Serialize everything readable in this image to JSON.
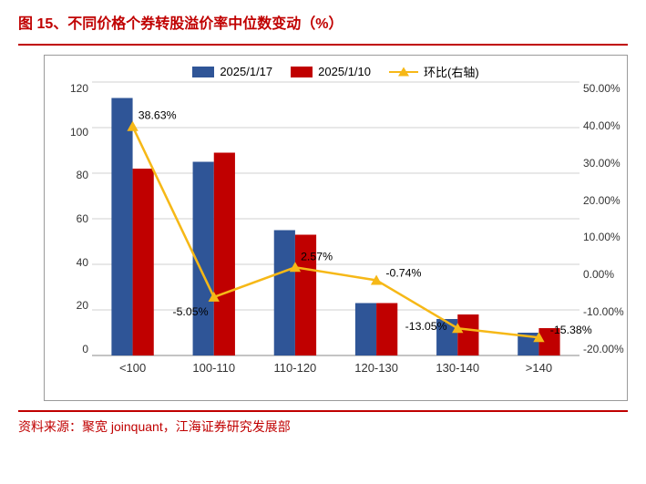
{
  "title": "图 15、不同价格个券转股溢价率中位数变动（%）",
  "source": "资料来源：聚宽 joinquant，江海证券研究发展部",
  "legend": {
    "series1": "2025/1/17",
    "series2": "2025/1/10",
    "line": "环比(右轴)"
  },
  "colors": {
    "series1": "#2f5597",
    "series2": "#c00000",
    "line": "#f6b817",
    "title": "#c00000",
    "rule": "#c00000",
    "border": "#9a9a9a",
    "grid": "#d0d0d0",
    "bg": "#ffffff"
  },
  "y_left": {
    "min": 0,
    "max": 120,
    "step": 20
  },
  "y_right": {
    "min": -20,
    "max": 50,
    "step": 10,
    "labels": [
      "50.00%",
      "40.00%",
      "30.00%",
      "20.00%",
      "10.00%",
      "0.00%",
      "-10.00%",
      "-20.00%"
    ]
  },
  "categories": [
    "<100",
    "100-110",
    "110-120",
    "120-130",
    "130-140",
    ">140"
  ],
  "series1_values": [
    113,
    85,
    55,
    23,
    16,
    10
  ],
  "series2_values": [
    82,
    89,
    53,
    23,
    18,
    12
  ],
  "line_values": [
    38.63,
    -5.05,
    2.57,
    -0.74,
    -13.05,
    -15.38
  ],
  "line_labels": [
    "38.63%",
    "-5.05%",
    "2.57%",
    "-0.74%",
    "-13.05%",
    "-15.38%"
  ],
  "chart": {
    "bar_group_width": 0.52,
    "bar_gap": 0.0,
    "type": "bar+line"
  }
}
